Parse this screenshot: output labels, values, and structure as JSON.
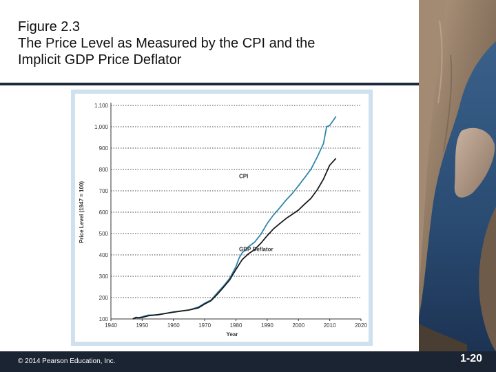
{
  "slide": {
    "title_line1": "Figure 2.3",
    "title_line2": "The Price Level as Measured by the CPI and the",
    "title_line3": "Implicit GDP Price Deflator",
    "copyright": "© 2014 Pearson Education, Inc.",
    "slide_number": "1-20"
  },
  "colors": {
    "cpi": "#2e86ab",
    "gdp_deflator": "#1a1a1a",
    "footer": "#1b2433",
    "panel": "#cfe0ee"
  },
  "chart_data": {
    "type": "line",
    "title": "",
    "xlabel": "Year",
    "ylabel": "Price Level (1947 = 100)",
    "xlim": [
      1940,
      2020
    ],
    "ylim": [
      100,
      1100
    ],
    "x_ticks": [
      "1940",
      "1950",
      "1960",
      "1970",
      "1980",
      "1990",
      "2000",
      "2010",
      "2020"
    ],
    "y_ticks": [
      "100",
      "200",
      "300",
      "400",
      "500",
      "600",
      "700",
      "800",
      "900",
      "1,000",
      "1,100"
    ],
    "grid": "horizontal-dotted",
    "series": [
      {
        "name": "CPI",
        "x": [
          1947,
          1948,
          1949,
          1950,
          1952,
          1955,
          1960,
          1965,
          1968,
          1970,
          1972,
          1974,
          1976,
          1978,
          1980,
          1981,
          1982,
          1984,
          1986,
          1988,
          1990,
          1992,
          1994,
          1996,
          1998,
          2000,
          2002,
          2004,
          2006,
          2008,
          2009,
          2010,
          2012
        ],
        "values": [
          100,
          108,
          106,
          110,
          118,
          119,
          133,
          142,
          156,
          174,
          188,
          222,
          254,
          290,
          345,
          385,
          410,
          438,
          460,
          497,
          547,
          587,
          620,
          656,
          687,
          724,
          762,
          801,
          858,
          922,
          1000,
          1006,
          1048
        ]
      },
      {
        "name": "GDP Deflator",
        "x": [
          1947,
          1948,
          1949,
          1950,
          1952,
          1955,
          1960,
          1965,
          1968,
          1970,
          1972,
          1974,
          1976,
          1978,
          1980,
          1982,
          1984,
          1986,
          1988,
          1990,
          1992,
          1994,
          1996,
          1998,
          2000,
          2002,
          2004,
          2006,
          2008,
          2010,
          2012
        ],
        "values": [
          100,
          106,
          105,
          107,
          115,
          120,
          132,
          142,
          152,
          170,
          185,
          215,
          248,
          283,
          332,
          378,
          405,
          425,
          455,
          490,
          522,
          546,
          570,
          590,
          610,
          638,
          665,
          705,
          755,
          820,
          852
        ]
      }
    ]
  }
}
